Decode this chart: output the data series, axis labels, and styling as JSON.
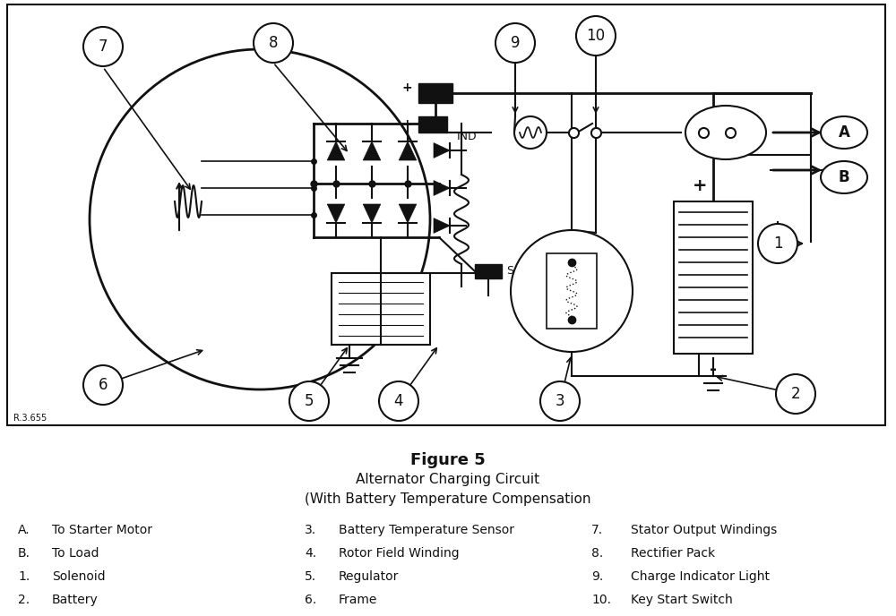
{
  "title": "Figure 5",
  "subtitle1": "Alternator Charging Circuit",
  "subtitle2": "(With Battery Temperature Compensation",
  "ref": "R.3.655",
  "legend": [
    {
      "key": "A.",
      "val": "To Starter Motor"
    },
    {
      "key": "B.",
      "val": "To Load"
    },
    {
      "key": "1.",
      "val": "Solenoid"
    },
    {
      "key": "2.",
      "val": "Battery"
    },
    {
      "key": "3.",
      "val": "Battery Temperature Sensor"
    },
    {
      "key": "4.",
      "val": "Rotor Field Winding"
    },
    {
      "key": "5.",
      "val": "Regulator"
    },
    {
      "key": "6.",
      "val": "Frame"
    },
    {
      "key": "7.",
      "val": "Stator Output Windings"
    },
    {
      "key": "8.",
      "val": "Rectifier Pack"
    },
    {
      "key": "9.",
      "val": "Charge Indicator Light"
    },
    {
      "key": "10.",
      "val": "Key Start Switch"
    }
  ],
  "bg_color": "#ffffff",
  "line_color": "#111111"
}
